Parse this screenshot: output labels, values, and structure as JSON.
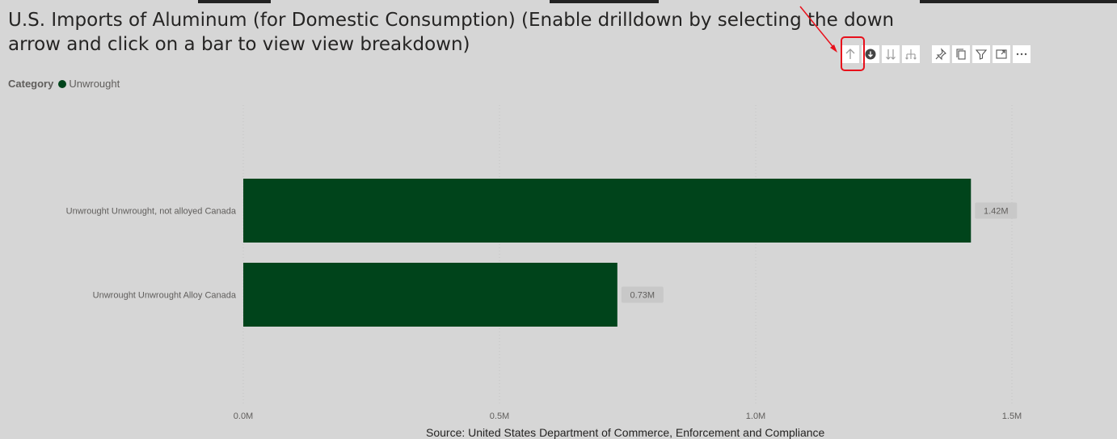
{
  "title": "U.S. Imports of Aluminum (for Domestic Consumption) (Enable drilldown by selecting the down arrow and click on a bar to view view breakdown)",
  "legend": {
    "title": "Category",
    "entries": [
      {
        "label": "Unwrought",
        "color": "#00441b"
      }
    ]
  },
  "source": "Source: United States Department of Commerce, Enforcement and Compliance",
  "toolbar": {
    "buttons": [
      {
        "name": "drill-up-icon"
      },
      {
        "name": "drilldown-toggle-icon"
      },
      {
        "name": "expand-next-level-icon"
      },
      {
        "name": "expand-all-down-icon"
      },
      {
        "name": "pin-icon"
      },
      {
        "name": "copy-visual-icon"
      },
      {
        "name": "filter-icon"
      },
      {
        "name": "focus-mode-icon"
      },
      {
        "name": "more-options-icon"
      }
    ]
  },
  "colors": {
    "background": "#d6d6d6",
    "bar": "#00441b",
    "highlight": "#e8101b",
    "data_label_bg": "#c8c8c8"
  },
  "chart_data": {
    "type": "bar",
    "orientation": "horizontal",
    "categories": [
      "Unwrought Unwrought, not alloyed Canada",
      "Unwrought Unwrought Alloy Canada"
    ],
    "values": [
      1420000,
      730000
    ],
    "data_labels": [
      "1.42M",
      "0.73M"
    ],
    "x_ticks": [
      {
        "value": 0,
        "label": "0.0M"
      },
      {
        "value": 500000,
        "label": "0.5M"
      },
      {
        "value": 1000000,
        "label": "1.0M"
      },
      {
        "value": 1500000,
        "label": "1.5M"
      }
    ],
    "xlim": [
      0,
      1500000
    ],
    "grid": true
  }
}
